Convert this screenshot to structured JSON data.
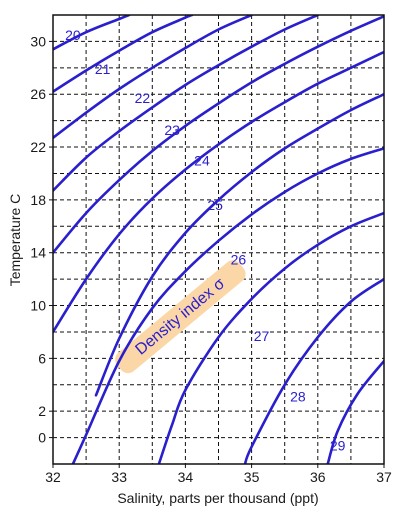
{
  "chart_data": {
    "type": "line",
    "title": "",
    "xlabel": "Salinity, parts per thousand (ppt)",
    "ylabel": "Temperature  C",
    "xlim": [
      32,
      37
    ],
    "ylim": [
      -2,
      32
    ],
    "x_ticks": [
      32,
      33,
      34,
      35,
      36,
      37
    ],
    "y_ticks": [
      0,
      2,
      6,
      10,
      14,
      18,
      22,
      26,
      30
    ],
    "x_grid": [
      32.5,
      33,
      33.5,
      34,
      34.5,
      35,
      35.5,
      36,
      36.5
    ],
    "y_grid": [
      0,
      2,
      4,
      6,
      8,
      10,
      12,
      14,
      16,
      18,
      20,
      22,
      24,
      26,
      28,
      30
    ],
    "grid": true,
    "line_color": "#2a1fcc",
    "annotation": {
      "text": "Density index σ",
      "highlight_color": "#fbd7a8",
      "text_color": "#2a1fcc"
    },
    "series": [
      {
        "name": "20",
        "label_at": [
          32.3,
          30.5
        ],
        "points": [
          [
            32.0,
            29.4
          ],
          [
            32.5,
            30.7
          ],
          [
            33.0,
            31.7
          ],
          [
            33.15,
            32.0
          ]
        ]
      },
      {
        "name": "21",
        "label_at": [
          32.75,
          27.9
        ],
        "points": [
          [
            32.0,
            26.2
          ],
          [
            32.5,
            27.8
          ],
          [
            33.0,
            29.3
          ],
          [
            33.5,
            30.7
          ],
          [
            34.0,
            31.8
          ],
          [
            34.1,
            32.0
          ]
        ]
      },
      {
        "name": "22",
        "label_at": [
          33.35,
          25.7
        ],
        "points": [
          [
            32.0,
            22.7
          ],
          [
            32.5,
            24.6
          ],
          [
            33.0,
            26.4
          ],
          [
            33.5,
            28.0
          ],
          [
            34.0,
            29.5
          ],
          [
            34.5,
            30.9
          ],
          [
            35.0,
            32.0
          ]
        ]
      },
      {
        "name": "23",
        "label_at": [
          33.8,
          23.3
        ],
        "points": [
          [
            32.0,
            18.7
          ],
          [
            32.5,
            21.2
          ],
          [
            33.0,
            23.2
          ],
          [
            33.5,
            25.0
          ],
          [
            34.0,
            26.7
          ],
          [
            34.5,
            28.2
          ],
          [
            35.0,
            29.6
          ],
          [
            35.5,
            30.9
          ],
          [
            36.0,
            32.0
          ]
        ]
      },
      {
        "name": "24",
        "label_at": [
          34.25,
          21.0
        ],
        "points": [
          [
            32.0,
            14.0
          ],
          [
            32.5,
            17.0
          ],
          [
            33.0,
            19.5
          ],
          [
            33.5,
            21.7
          ],
          [
            34.0,
            23.6
          ],
          [
            34.5,
            25.3
          ],
          [
            35.0,
            26.9
          ],
          [
            35.5,
            28.3
          ],
          [
            36.0,
            29.6
          ],
          [
            36.5,
            30.8
          ],
          [
            37.0,
            31.9
          ]
        ]
      },
      {
        "name": "25",
        "label_at": [
          34.45,
          17.6
        ],
        "points": [
          [
            32.0,
            8.0
          ],
          [
            32.5,
            12.0
          ],
          [
            33.0,
            15.4
          ],
          [
            33.5,
            18.1
          ],
          [
            34.0,
            20.3
          ],
          [
            34.5,
            22.2
          ],
          [
            35.0,
            23.9
          ],
          [
            35.5,
            25.4
          ],
          [
            36.0,
            26.8
          ],
          [
            36.5,
            28.0
          ],
          [
            37.0,
            29.2
          ]
        ]
      },
      {
        "name": "26",
        "label_at": [
          34.8,
          13.5
        ],
        "points": [
          [
            32.65,
            3.2
          ],
          [
            33.0,
            7.5
          ],
          [
            33.5,
            12.2
          ],
          [
            34.0,
            15.5
          ],
          [
            34.5,
            18.0
          ],
          [
            35.0,
            20.1
          ],
          [
            35.5,
            21.9
          ],
          [
            36.0,
            23.4
          ],
          [
            36.5,
            24.8
          ],
          [
            37.0,
            26.0
          ]
        ]
      },
      {
        "name": "27",
        "label_at": [
          35.15,
          7.7
        ],
        "points": [
          [
            32.3,
            -2.0
          ],
          [
            32.5,
            0.2
          ],
          [
            33.0,
            5.8
          ],
          [
            33.5,
            9.8
          ],
          [
            34.0,
            12.6
          ],
          [
            34.5,
            14.9
          ],
          [
            35.0,
            16.9
          ],
          [
            35.5,
            18.6
          ],
          [
            36.0,
            20.0
          ],
          [
            36.5,
            21.1
          ],
          [
            37.0,
            21.9
          ]
        ]
      },
      {
        "name": "28",
        "label_at": [
          35.7,
          3.1
        ],
        "points": [
          [
            33.6,
            -2.0
          ],
          [
            33.8,
            1.0
          ],
          [
            34.0,
            3.6
          ],
          [
            34.5,
            7.6
          ],
          [
            35.0,
            10.5
          ],
          [
            35.5,
            12.8
          ],
          [
            36.0,
            14.6
          ],
          [
            36.5,
            16.0
          ],
          [
            37.0,
            17.0
          ]
        ]
      },
      {
        "name": "29",
        "label_at": [
          36.3,
          -0.6
        ],
        "points": [
          [
            34.9,
            -2.0
          ],
          [
            35.0,
            -0.7
          ],
          [
            35.5,
            4.0
          ],
          [
            36.0,
            7.6
          ],
          [
            36.5,
            10.3
          ],
          [
            37.0,
            12.0
          ]
        ]
      },
      {
        "name": "",
        "label_at": null,
        "points": [
          [
            36.15,
            -2.0
          ],
          [
            36.3,
            0.5
          ],
          [
            36.6,
            3.3
          ],
          [
            37.0,
            5.8
          ]
        ]
      }
    ]
  }
}
